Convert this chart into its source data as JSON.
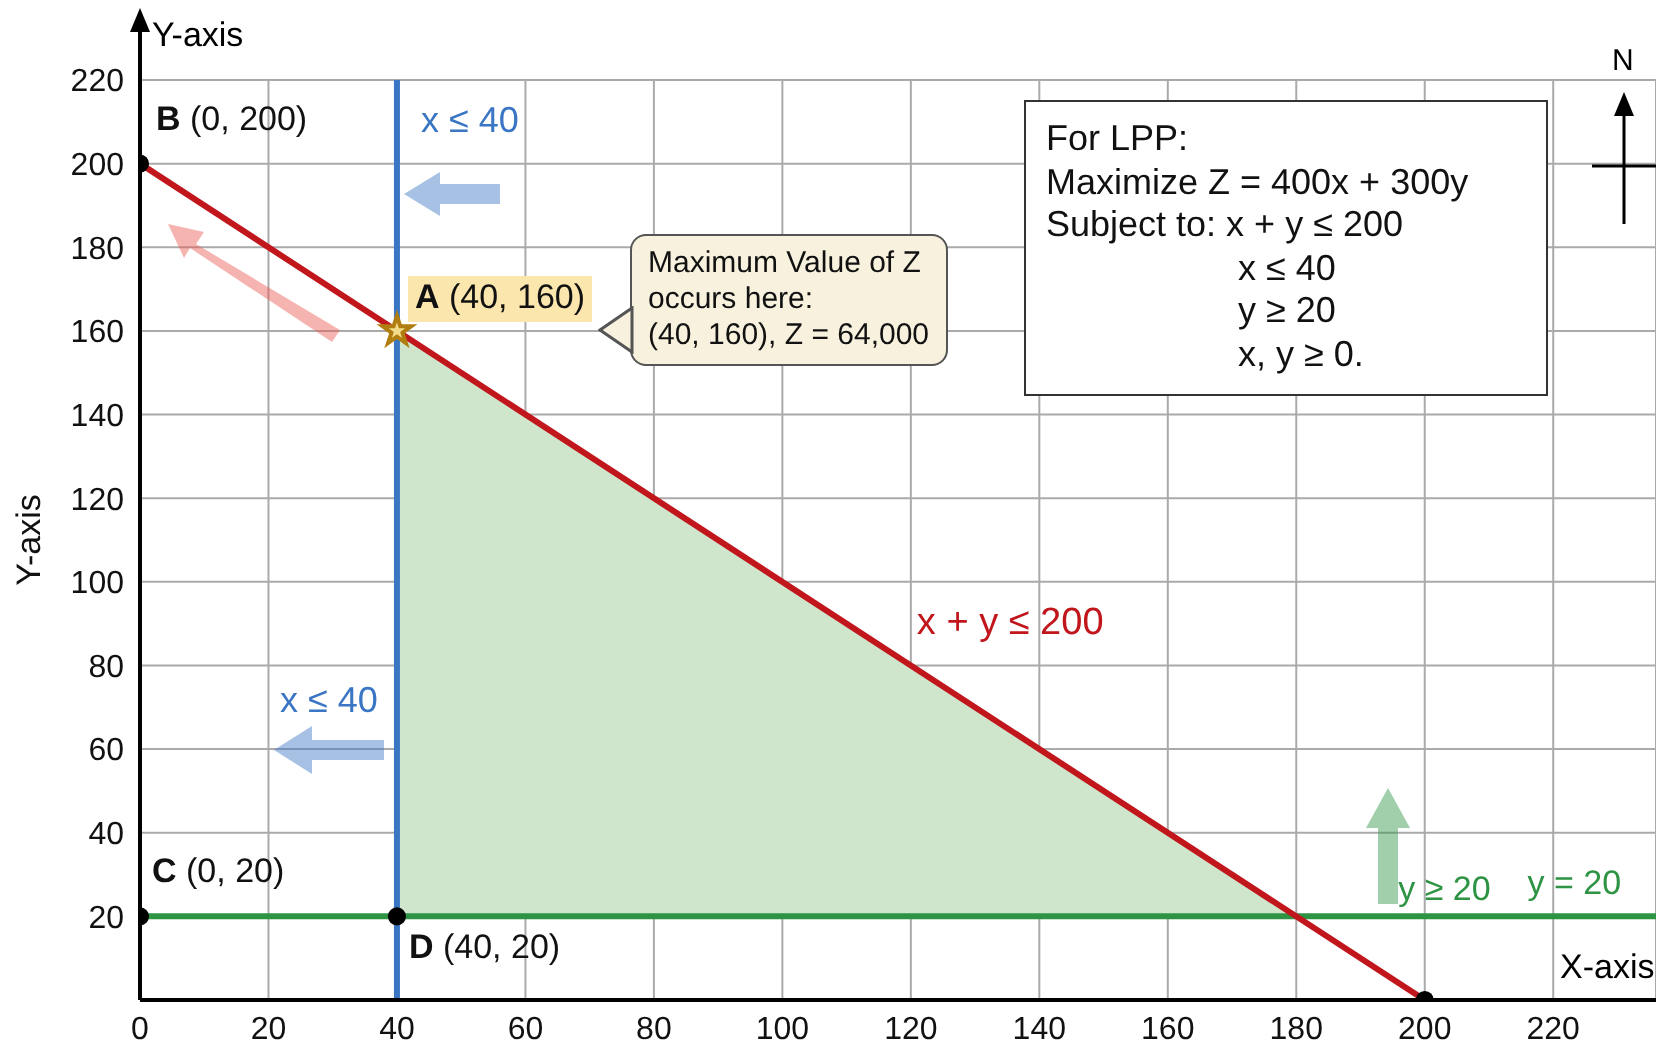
{
  "chart_data": {
    "type": "line",
    "xlabel": "X-axis",
    "ylabel": "Y-axis",
    "xlim": [
      0,
      236
    ],
    "ylim": [
      0,
      220
    ],
    "xticks": [
      0,
      20,
      40,
      60,
      80,
      100,
      120,
      140,
      160,
      180,
      200,
      220
    ],
    "yticks": [
      {
        "value": 0,
        "label": null
      },
      20,
      40,
      60,
      80,
      100,
      120,
      140,
      160,
      180,
      200,
      220
    ],
    "grid": true,
    "series": [
      {
        "type": "area",
        "color": "#cfe6cc",
        "x": [
          40,
          180
        ],
        "values": [
          160,
          20
        ]
      },
      {
        "name": "x + y ≤ 200",
        "color": "#c0161c",
        "x": [
          0,
          200
        ],
        "values": [
          200,
          0
        ]
      },
      {
        "type": "scatter",
        "color": "#000000",
        "marker": "circle",
        "x": [
          0,
          0,
          40,
          200
        ],
        "values": [
          200,
          20,
          20,
          0
        ]
      },
      {
        "type": "scatter",
        "color": "#f2dc8c",
        "marker": "star",
        "x": [
          40
        ],
        "values": [
          160
        ]
      }
    ],
    "ref_lines": [
      {
        "axis": "x",
        "value": 40,
        "label": "x ≤ 40",
        "color": "#3a76c4"
      },
      {
        "axis": "y",
        "value": 20,
        "label": "y ≥ 20",
        "color": "#2e9444"
      }
    ],
    "annotations": [
      "Y-axis",
      {
        "text": "B (0, 200)",
        "x": 0,
        "y": 200
      },
      {
        "text": "A (40, 160)",
        "x": 40,
        "y": 160
      },
      {
        "text": "C (0, 20)",
        "x": 0,
        "y": 20
      },
      {
        "text": "D (40, 20)",
        "x": 40,
        "y": 20
      },
      "Maximum Value of Z\noccurs here:\n(40, 160), Z = 64,000",
      "For LPP:\nMaximize Z = 400x + 300y\nSubject to: x + y ≤ 200\nx ≤ 40\ny ≥ 20\nx, y ≥ 0.",
      "x ≤ 40",
      {
        "text": "y = 20",
        "x": 216,
        "y": 20
      },
      "N"
    ]
  }
}
